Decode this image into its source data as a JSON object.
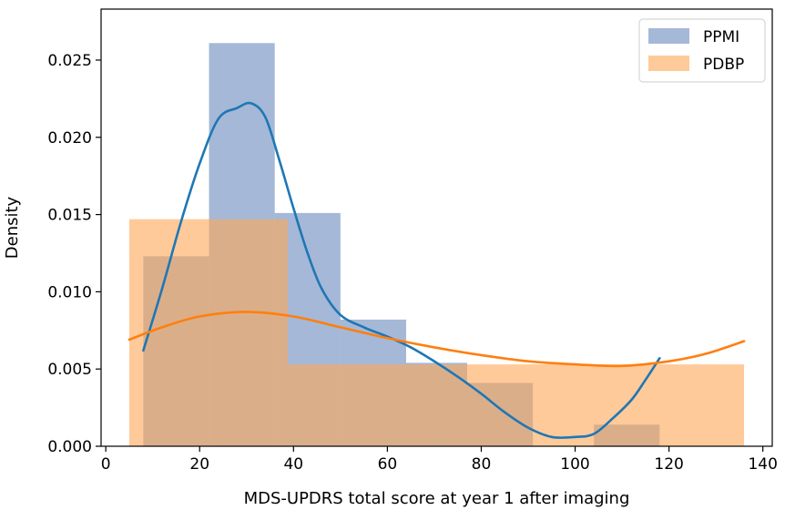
{
  "chart_data": {
    "type": "histogram",
    "xlabel": "MDS-UPDRS total score at year 1 after imaging",
    "ylabel": "Density",
    "xlim": [
      -1,
      142
    ],
    "ylim": [
      0,
      0.0283
    ],
    "xticks": [
      0,
      20,
      40,
      60,
      80,
      100,
      120,
      140
    ],
    "yticks": [
      0.0,
      0.005,
      0.01,
      0.015,
      0.02,
      0.025
    ],
    "ytick_labels": [
      "0.000",
      "0.005",
      "0.010",
      "0.015",
      "0.020",
      "0.025"
    ],
    "grid": false,
    "legend_position": "top-right",
    "series": [
      {
        "name": "PPMI",
        "color": "#4c72b0",
        "fill_opacity": 0.5,
        "bins": [
          {
            "x0": 8,
            "x1": 22,
            "density": 0.0123
          },
          {
            "x0": 22,
            "x1": 36,
            "density": 0.0261
          },
          {
            "x0": 36,
            "x1": 50,
            "density": 0.0151
          },
          {
            "x0": 50,
            "x1": 64,
            "density": 0.0082
          },
          {
            "x0": 64,
            "x1": 77,
            "density": 0.0054
          },
          {
            "x0": 77,
            "x1": 91,
            "density": 0.0041
          },
          {
            "x0": 91,
            "x1": 104,
            "density": 0.0
          },
          {
            "x0": 104,
            "x1": 118,
            "density": 0.0014
          }
        ],
        "kde_color": "#1f77b4",
        "kde": {
          "x": [
            8,
            12,
            16,
            20,
            24,
            28,
            31,
            34,
            37,
            40,
            43,
            46,
            50,
            55,
            60,
            65,
            70,
            75,
            80,
            85,
            90,
            95,
            100,
            104,
            108,
            112,
            115,
            118
          ],
          "y": [
            0.0062,
            0.0102,
            0.0145,
            0.0183,
            0.0212,
            0.0219,
            0.0222,
            0.0213,
            0.0185,
            0.0154,
            0.0125,
            0.0102,
            0.0085,
            0.0077,
            0.0071,
            0.0064,
            0.0055,
            0.0045,
            0.0034,
            0.0022,
            0.0012,
            0.0006,
            0.0006,
            0.0008,
            0.0018,
            0.003,
            0.0043,
            0.0057
          ]
        }
      },
      {
        "name": "PDBP",
        "color": "#ffa756",
        "fill_opacity": 0.6,
        "bins": [
          {
            "x0": 5,
            "x1": 38.8,
            "density": 0.0147
          },
          {
            "x0": 38.8,
            "x1": 69.5,
            "density": 0.0053
          },
          {
            "x0": 69.5,
            "x1": 136,
            "density": 0.0053
          }
        ],
        "kde_color": "#ff7f0e",
        "kde": {
          "x": [
            5,
            12,
            20,
            30,
            40,
            50,
            60,
            70,
            80,
            90,
            100,
            110,
            120,
            128,
            136
          ],
          "y": [
            0.0069,
            0.0077,
            0.0084,
            0.0087,
            0.0084,
            0.0077,
            0.007,
            0.0064,
            0.0059,
            0.0055,
            0.0053,
            0.0052,
            0.0055,
            0.006,
            0.0068
          ]
        }
      }
    ]
  }
}
